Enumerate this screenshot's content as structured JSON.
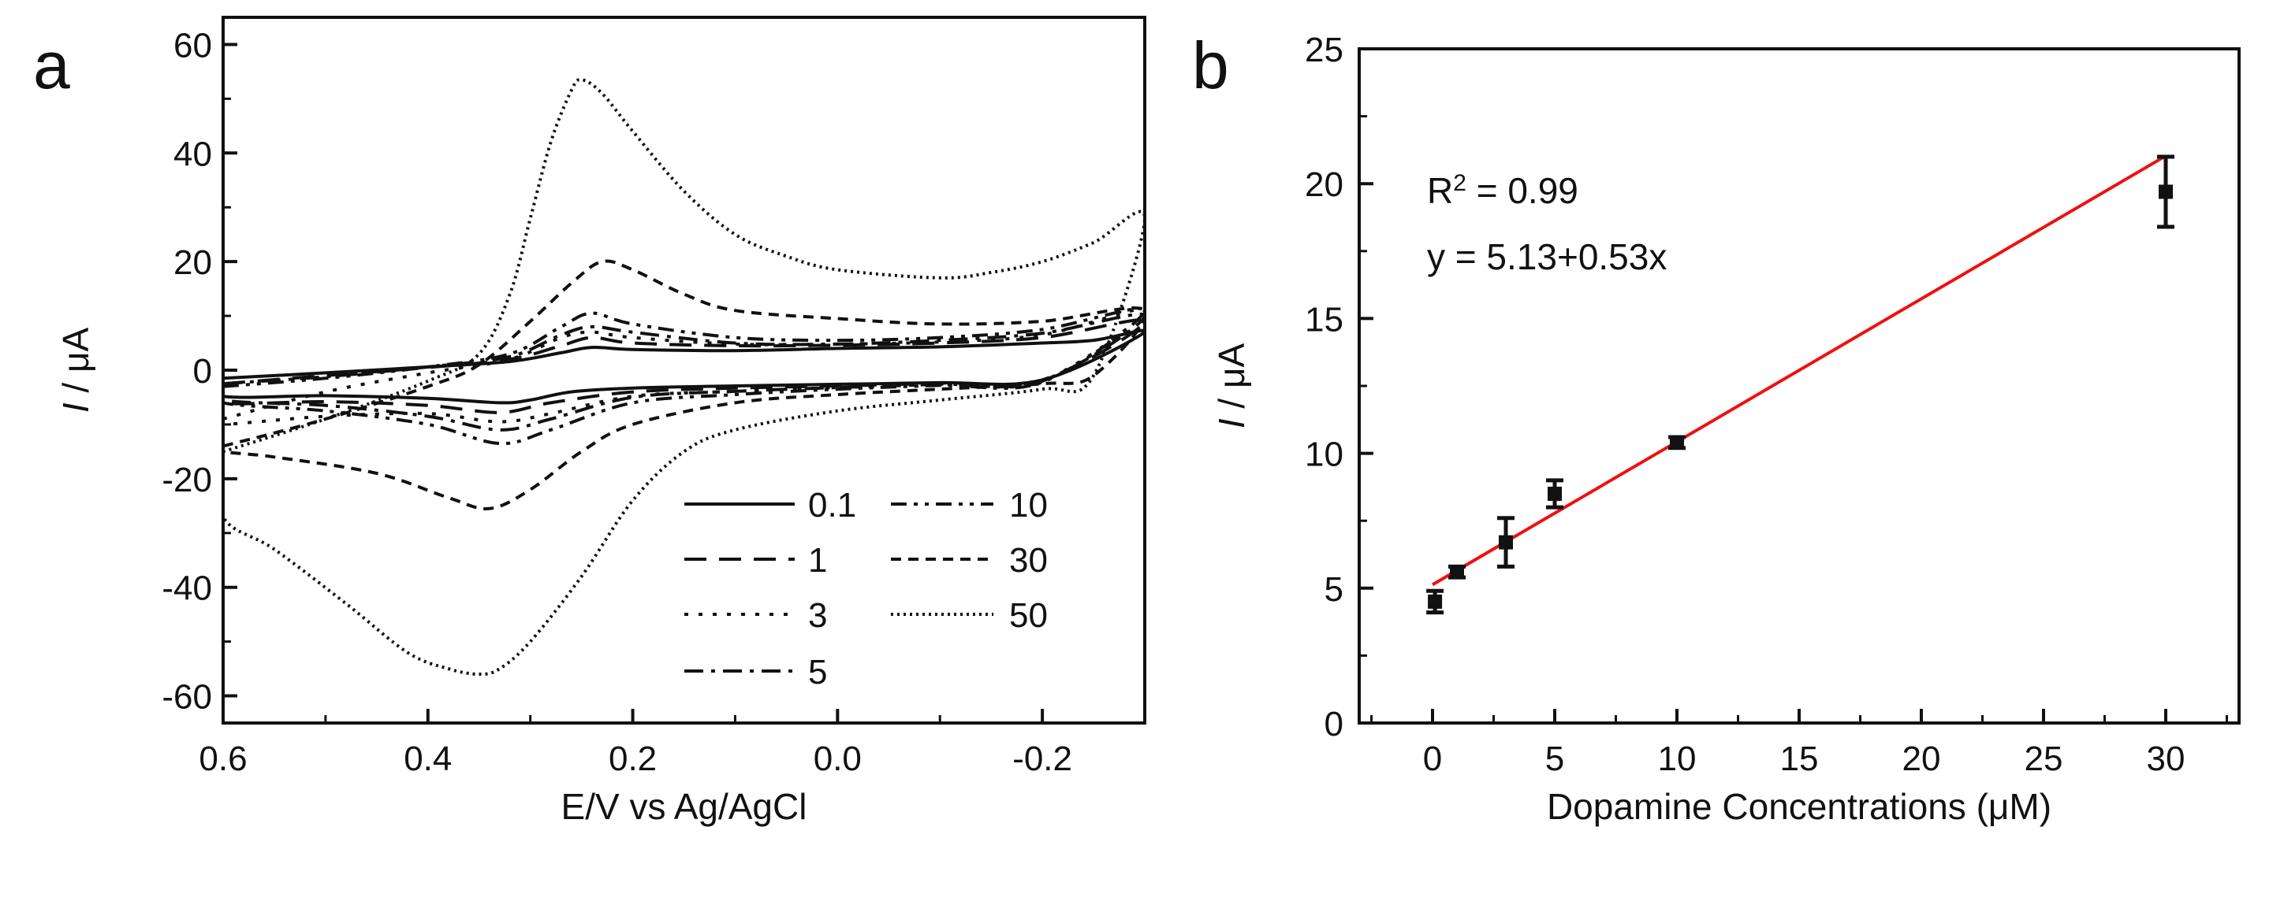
{
  "chart_data": [
    {
      "panel": "a",
      "type": "line",
      "title": "",
      "xlabel": "E/V vs Ag/AgCl",
      "ylabel_italic": "I",
      "ylabel_rest": " / μA",
      "xlim": [
        0.6,
        -0.3
      ],
      "ylim": [
        -65,
        65
      ],
      "xticks": [
        0.6,
        0.4,
        0.2,
        0.0,
        -0.2
      ],
      "xtick_labels": [
        "0.6",
        "0.4",
        "0.2",
        "0.0",
        "-0.2"
      ],
      "yticks": [
        -60,
        -40,
        -20,
        0,
        20,
        40,
        60
      ],
      "ytick_labels": [
        "-60",
        "-40",
        "-20",
        "0",
        "20",
        "40",
        "60"
      ],
      "grid": false,
      "legend_position": "bottom-right",
      "series": [
        {
          "name": "0.1",
          "dash": "solid",
          "anodic": [
            [
              0.6,
              -1.5
            ],
            [
              0.5,
              -0.5
            ],
            [
              0.4,
              0.6
            ],
            [
              0.32,
              1.6
            ],
            [
              0.27,
              3.2
            ],
            [
              0.24,
              4.2
            ],
            [
              0.2,
              3.8
            ],
            [
              0.1,
              3.6
            ],
            [
              0.0,
              4.0
            ],
            [
              -0.1,
              4.3
            ],
            [
              -0.2,
              5.0
            ],
            [
              -0.25,
              5.5
            ],
            [
              -0.3,
              7.0
            ]
          ],
          "cathodic": [
            [
              -0.3,
              2.0
            ],
            [
              -0.2,
              -1.8
            ],
            [
              -0.1,
              -2.3
            ],
            [
              0.0,
              -2.6
            ],
            [
              0.1,
              -2.9
            ],
            [
              0.2,
              -3.3
            ],
            [
              0.26,
              -4.0
            ],
            [
              0.3,
              -5.5
            ],
            [
              0.33,
              -6.0
            ],
            [
              0.4,
              -5.2
            ],
            [
              0.5,
              -4.7
            ],
            [
              0.6,
              -4.8
            ]
          ]
        },
        {
          "name": "1",
          "dash": "long",
          "anodic": [
            [
              0.6,
              -2.5
            ],
            [
              0.5,
              -1.0
            ],
            [
              0.4,
              0.5
            ],
            [
              0.32,
              2.0
            ],
            [
              0.27,
              4.5
            ],
            [
              0.24,
              6.0
            ],
            [
              0.2,
              5.0
            ],
            [
              0.1,
              4.5
            ],
            [
              0.0,
              4.6
            ],
            [
              -0.1,
              5.0
            ],
            [
              -0.2,
              6.0
            ],
            [
              -0.3,
              9.0
            ]
          ],
          "cathodic": [
            [
              -0.3,
              3.0
            ],
            [
              -0.2,
              -1.8
            ],
            [
              -0.1,
              -2.4
            ],
            [
              0.0,
              -2.9
            ],
            [
              0.1,
              -3.3
            ],
            [
              0.2,
              -4.0
            ],
            [
              0.28,
              -6.0
            ],
            [
              0.33,
              -7.8
            ],
            [
              0.4,
              -6.5
            ],
            [
              0.5,
              -5.8
            ],
            [
              0.6,
              -6.0
            ]
          ]
        },
        {
          "name": "3",
          "dash": "dot",
          "anodic": [
            [
              0.6,
              -9.0
            ],
            [
              0.5,
              -4.0
            ],
            [
              0.4,
              -0.5
            ],
            [
              0.32,
              2.0
            ],
            [
              0.27,
              6.0
            ],
            [
              0.24,
              7.0
            ],
            [
              0.2,
              6.0
            ],
            [
              0.1,
              4.8
            ],
            [
              0.0,
              4.8
            ],
            [
              -0.1,
              5.2
            ],
            [
              -0.2,
              6.5
            ],
            [
              -0.3,
              11.0
            ]
          ],
          "cathodic": [
            [
              -0.3,
              4.0
            ],
            [
              -0.2,
              -2.0
            ],
            [
              -0.1,
              -2.6
            ],
            [
              0.0,
              -3.2
            ],
            [
              0.1,
              -3.9
            ],
            [
              0.2,
              -4.8
            ],
            [
              0.28,
              -8.0
            ],
            [
              0.33,
              -9.5
            ],
            [
              0.4,
              -8.0
            ],
            [
              0.5,
              -8.5
            ],
            [
              0.6,
              -10.0
            ]
          ]
        },
        {
          "name": "5",
          "dash": "dashdot",
          "anodic": [
            [
              0.6,
              -2.5
            ],
            [
              0.5,
              -1.2
            ],
            [
              0.4,
              0.6
            ],
            [
              0.32,
              2.5
            ],
            [
              0.27,
              6.5
            ],
            [
              0.24,
              8.0
            ],
            [
              0.2,
              7.0
            ],
            [
              0.1,
              5.0
            ],
            [
              0.0,
              4.8
            ],
            [
              -0.1,
              5.5
            ],
            [
              -0.2,
              6.8
            ],
            [
              -0.3,
              10.0
            ]
          ],
          "cathodic": [
            [
              -0.3,
              3.5
            ],
            [
              -0.2,
              -2.0
            ],
            [
              -0.1,
              -2.6
            ],
            [
              0.0,
              -3.2
            ],
            [
              0.1,
              -3.9
            ],
            [
              0.2,
              -5.0
            ],
            [
              0.28,
              -9.0
            ],
            [
              0.33,
              -11.0
            ],
            [
              0.4,
              -8.5
            ],
            [
              0.5,
              -6.5
            ],
            [
              0.6,
              -5.5
            ]
          ]
        },
        {
          "name": "10",
          "dash": "dashdotdot",
          "anodic": [
            [
              0.6,
              -3.0
            ],
            [
              0.5,
              -1.5
            ],
            [
              0.4,
              0.6
            ],
            [
              0.32,
              3.0
            ],
            [
              0.27,
              8.0
            ],
            [
              0.24,
              10.5
            ],
            [
              0.2,
              8.5
            ],
            [
              0.1,
              6.0
            ],
            [
              0.0,
              5.5
            ],
            [
              -0.1,
              6.0
            ],
            [
              -0.2,
              7.5
            ],
            [
              -0.3,
              11.0
            ]
          ],
          "cathodic": [
            [
              -0.3,
              4.0
            ],
            [
              -0.2,
              -2.2
            ],
            [
              -0.1,
              -2.8
            ],
            [
              0.0,
              -3.5
            ],
            [
              0.1,
              -4.5
            ],
            [
              0.2,
              -6.0
            ],
            [
              0.28,
              -11.0
            ],
            [
              0.33,
              -13.5
            ],
            [
              0.4,
              -10.0
            ],
            [
              0.5,
              -7.5
            ],
            [
              0.6,
              -6.0
            ]
          ]
        },
        {
          "name": "30",
          "dash": "shortdash",
          "anodic": [
            [
              0.6,
              -14.0
            ],
            [
              0.5,
              -9.0
            ],
            [
              0.4,
              -3.0
            ],
            [
              0.35,
              1.0
            ],
            [
              0.3,
              9.0
            ],
            [
              0.26,
              16.0
            ],
            [
              0.23,
              20.0
            ],
            [
              0.2,
              18.5
            ],
            [
              0.15,
              14.0
            ],
            [
              0.1,
              11.0
            ],
            [
              0.0,
              9.5
            ],
            [
              -0.1,
              8.5
            ],
            [
              -0.2,
              9.0
            ],
            [
              -0.3,
              11.0
            ]
          ],
          "cathodic": [
            [
              -0.3,
              6.0
            ],
            [
              -0.25,
              -1.0
            ],
            [
              -0.2,
              -2.5
            ],
            [
              -0.1,
              -3.5
            ],
            [
              0.0,
              -4.5
            ],
            [
              0.1,
              -6.0
            ],
            [
              0.2,
              -10.0
            ],
            [
              0.25,
              -15.0
            ],
            [
              0.3,
              -22.0
            ],
            [
              0.34,
              -25.5
            ],
            [
              0.38,
              -23.5
            ],
            [
              0.45,
              -19.0
            ],
            [
              0.55,
              -16.0
            ],
            [
              0.6,
              -15.0
            ]
          ]
        },
        {
          "name": "50",
          "dash": "finedot",
          "anodic": [
            [
              0.6,
              -15.0
            ],
            [
              0.5,
              -9.0
            ],
            [
              0.4,
              -2.0
            ],
            [
              0.35,
              3.0
            ],
            [
              0.32,
              14.0
            ],
            [
              0.3,
              28.0
            ],
            [
              0.28,
              42.0
            ],
            [
              0.26,
              51.5
            ],
            [
              0.25,
              53.5
            ],
            [
              0.23,
              51.0
            ],
            [
              0.2,
              44.0
            ],
            [
              0.15,
              33.0
            ],
            [
              0.1,
              25.0
            ],
            [
              0.05,
              21.0
            ],
            [
              0.0,
              18.5
            ],
            [
              -0.1,
              17.0
            ],
            [
              -0.15,
              18.0
            ],
            [
              -0.2,
              20.0
            ],
            [
              -0.25,
              23.5
            ],
            [
              -0.3,
              28.0
            ]
          ],
          "cathodic": [
            [
              -0.3,
              10.0
            ],
            [
              -0.25,
              -1.0
            ],
            [
              -0.2,
              -3.5
            ],
            [
              -0.1,
              -5.5
            ],
            [
              0.0,
              -7.5
            ],
            [
              0.1,
              -11.0
            ],
            [
              0.15,
              -15.0
            ],
            [
              0.2,
              -24.0
            ],
            [
              0.25,
              -38.0
            ],
            [
              0.3,
              -50.0
            ],
            [
              0.33,
              -55.0
            ],
            [
              0.35,
              -56.0
            ],
            [
              0.38,
              -55.0
            ],
            [
              0.42,
              -52.0
            ],
            [
              0.48,
              -43.0
            ],
            [
              0.55,
              -33.0
            ],
            [
              0.6,
              -27.0
            ]
          ]
        }
      ]
    },
    {
      "panel": "b",
      "type": "scatter",
      "title": "",
      "xlabel": "Dopamine Concentrations (μM)",
      "ylabel_italic": "I",
      "ylabel_rest": " / μA",
      "xlim": [
        -3,
        33
      ],
      "ylim": [
        0,
        25
      ],
      "xticks": [
        0,
        5,
        10,
        15,
        20,
        25,
        30
      ],
      "xtick_labels": [
        "0",
        "5",
        "10",
        "15",
        "20",
        "25",
        "30"
      ],
      "yticks": [
        0,
        5,
        10,
        15,
        20,
        25
      ],
      "ytick_labels": [
        "0",
        "5",
        "10",
        "15",
        "20",
        "25"
      ],
      "grid": false,
      "points": [
        {
          "x": 0.1,
          "y": 4.5,
          "err": 0.4
        },
        {
          "x": 1,
          "y": 5.6,
          "err": 0.2
        },
        {
          "x": 3,
          "y": 6.7,
          "err": 0.9
        },
        {
          "x": 5,
          "y": 8.5,
          "err": 0.5
        },
        {
          "x": 10,
          "y": 10.4,
          "err": 0.2
        },
        {
          "x": 30,
          "y": 19.7,
          "err": 1.3
        }
      ],
      "fit": {
        "intercept": 5.13,
        "slope": 0.53,
        "x_range": [
          0,
          30
        ],
        "color": "#ee1111"
      },
      "annotations": {
        "r2_prefix": "R",
        "r2_sup": "2",
        "r2_value": " = 0.99",
        "equation": "y = 5.13+0.53x"
      }
    }
  ]
}
